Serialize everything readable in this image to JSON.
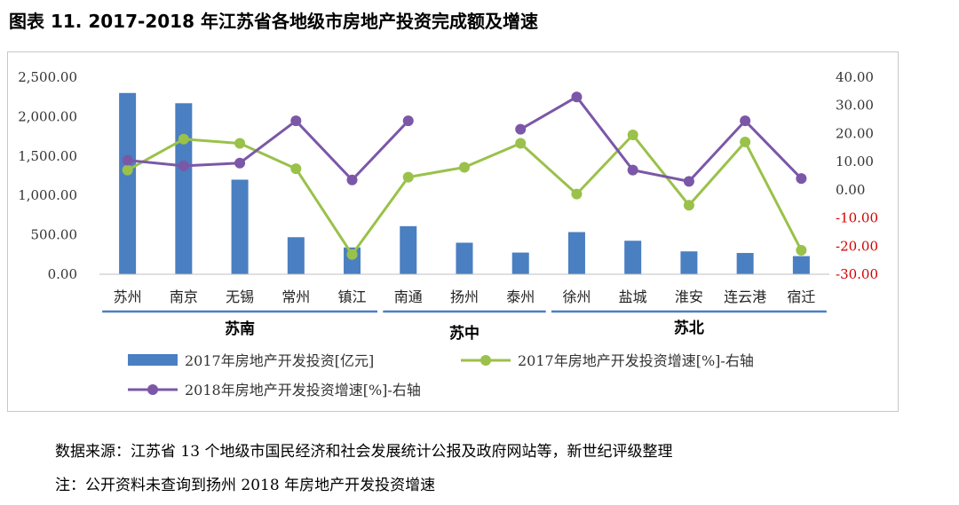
{
  "title": "图表 11. 2017-2018 年江苏省各地级市房地产投资完成额及增速",
  "chart_data": {
    "type": "bar",
    "categories": [
      "苏州",
      "南京",
      "无锡",
      "常州",
      "镇江",
      "南通",
      "扬州",
      "泰州",
      "徐州",
      "盐城",
      "淮安",
      "连云港",
      "宿迁"
    ],
    "groups": [
      {
        "label": "苏南",
        "from": 0,
        "to": 4
      },
      {
        "label": "苏中",
        "from": 5,
        "to": 7
      },
      {
        "label": "苏北",
        "from": 8,
        "to": 12
      }
    ],
    "left_axis": {
      "min": 0,
      "max": 2500,
      "step": 500,
      "ticks": [
        "0.00",
        "500.00",
        "1,000.00",
        "1,500.00",
        "2,000.00",
        "2,500.00"
      ]
    },
    "right_axis": {
      "min": -30,
      "max": 40,
      "step": 10,
      "ticks": [
        "-30.00",
        "-20.00",
        "-10.00",
        "0.00",
        "10.00",
        "20.00",
        "30.00",
        "40.00"
      ],
      "negative_color": "#d00000"
    },
    "series": [
      {
        "name": "2017年房地产开发投资[亿元]",
        "kind": "bar",
        "axis": "left",
        "color": "#4a7fc1",
        "values": [
          2300,
          2170,
          1200,
          470,
          340,
          610,
          400,
          275,
          535,
          425,
          290,
          270,
          230
        ]
      },
      {
        "name": "2017年房地产开发投资增速[%]-右轴",
        "kind": "line",
        "axis": "right",
        "color": "#9ac14a",
        "values": [
          7.0,
          18.0,
          16.5,
          7.5,
          -23.0,
          4.5,
          8.0,
          16.5,
          -1.5,
          19.5,
          -5.5,
          17.0,
          -21.5
        ]
      },
      {
        "name": "2018年房地产开发投资增速[%]-右轴",
        "kind": "line",
        "axis": "right",
        "color": "#7b57a8",
        "values": [
          10.5,
          8.5,
          9.5,
          24.5,
          3.5,
          24.5,
          null,
          21.5,
          33.0,
          7.0,
          3.0,
          24.5,
          4.0
        ]
      }
    ],
    "legend_position": "bottom"
  },
  "footnotes": {
    "source": "数据来源：江苏省 13 个地级市国民经济和社会发展统计公报及政府网站等，新世纪评级整理",
    "note": "注：公开资料未查询到扬州 2018 年房地产开发投资增速"
  }
}
